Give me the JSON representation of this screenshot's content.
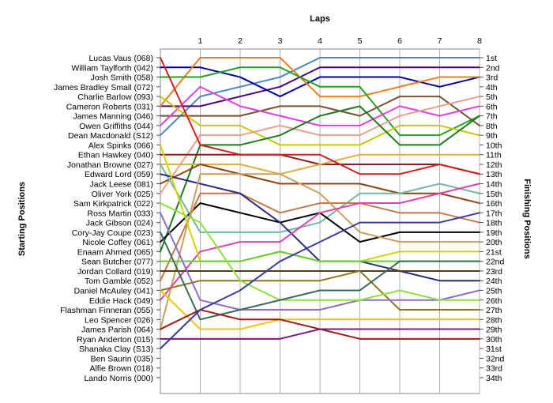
{
  "chart_data": {
    "type": "line",
    "title": "",
    "xlabel": "Laps",
    "ylabel_left": "Starting Positions",
    "ylabel_right": "Finishing Positions",
    "laps": [
      1,
      2,
      3,
      4,
      5,
      6,
      7,
      8
    ],
    "start_labels": [
      "Lucas Vaus (068)",
      "William Taylforth (042)",
      "Josh Smith (058)",
      "James Bradley Small (072)",
      "Charlie Barlow (093)",
      "Cameron Roberts (031)",
      "James Manning (046)",
      "Owen Griffiths (044)",
      "Dean Macdonald (S12)",
      "Alex Spinks (066)",
      "Ethan Hawkey (040)",
      "Jonathan Browne (027)",
      "Edward Lord (059)",
      "Jack Leese (081)",
      "Oliver York (025)",
      "Sam Kirkpatrick (022)",
      "Ross Martin (033)",
      "Jack Gibson (024)",
      "Cory-Jay Coupe (023)",
      "Nicole Coffey (061)",
      "Enaam Ahmed (065)",
      "Sean Butcher (077)",
      "Jordan Collard (019)",
      "Tom Gamble (052)",
      "Daniel McAuley (041)",
      "Eddie Hack (049)",
      "Flashman Finneran (055)",
      "Leo Spencer (026)",
      "James Parish (064)",
      "Ryan Anderton (015)",
      "Shanaka Clay (S13)",
      "Ben Saurin (035)",
      "Alfie Brown (018)",
      "Lando Norris (000)"
    ],
    "finish_labels": [
      "1st",
      "2nd",
      "3rd",
      "4th",
      "5th",
      "6th",
      "7th",
      "8th",
      "9th",
      "10th",
      "11th",
      "12th",
      "13th",
      "14th",
      "15th",
      "16th",
      "17th",
      "18th",
      "19th",
      "20th",
      "21st",
      "22nd",
      "23rd",
      "24th",
      "25th",
      "26th",
      "27th",
      "28th",
      "29th",
      "30th",
      "31st",
      "32nd",
      "33rd",
      "34th"
    ],
    "series": [
      {
        "color": "#4a86c8",
        "positions": [
          9,
          5,
          4,
          3,
          1,
          1,
          1,
          1,
          1
        ]
      },
      {
        "color": "#4b0082",
        "positions": [
          6,
          6,
          5,
          4,
          2,
          2,
          2,
          2,
          2
        ]
      },
      {
        "color": "#000099",
        "positions": [
          2,
          2,
          3,
          5,
          3,
          3,
          3,
          4,
          3
        ]
      },
      {
        "color": "#ee7f1a",
        "positions": [
          6,
          1,
          1,
          1,
          5,
          5,
          4,
          3,
          3
        ]
      },
      {
        "color": "#26a026",
        "positions": [
          3,
          3,
          2,
          2,
          4,
          4,
          9,
          9,
          7
        ]
      },
      {
        "color": "#7a5230",
        "positions": [
          7,
          7,
          7,
          6,
          6,
          7,
          5,
          5,
          8
        ]
      },
      {
        "color": "#e040e0",
        "positions": [
          8,
          4,
          6,
          7,
          8,
          8,
          6,
          7,
          6
        ]
      },
      {
        "color": "#c8c800",
        "positions": [
          5,
          8,
          8,
          10,
          10,
          10,
          8,
          8,
          9
        ]
      },
      {
        "color": "#e8a090",
        "positions": [
          15,
          9,
          9,
          8,
          9,
          9,
          7,
          6,
          5
        ]
      },
      {
        "color": "#1f7a1f",
        "positions": [
          21,
          10,
          10,
          9,
          7,
          6,
          10,
          10,
          7
        ]
      },
      {
        "color": "#8b1a1a",
        "positions": [
          11,
          11,
          11,
          11,
          12,
          12,
          12,
          12,
          13
        ]
      },
      {
        "color": "#e0b040",
        "positions": [
          12,
          12,
          12,
          13,
          12,
          11,
          11,
          11,
          11
        ]
      },
      {
        "color": "#cc2222",
        "positions": [
          1,
          10,
          11,
          11,
          11,
          13,
          13,
          12,
          13
        ]
      },
      {
        "color": "#8b4513",
        "positions": [
          14,
          12,
          13,
          14,
          14,
          14,
          15,
          15,
          16
        ]
      },
      {
        "color": "#70b8a8",
        "positions": [
          12,
          19,
          19,
          19,
          18,
          15,
          15,
          14,
          15
        ]
      },
      {
        "color": "#000000",
        "positions": [
          20,
          16,
          17,
          18,
          17,
          20,
          19,
          19,
          19
        ]
      },
      {
        "color": "#c87848",
        "positions": [
          24,
          15,
          15,
          17,
          16,
          16,
          17,
          17,
          18
        ]
      },
      {
        "color": "#2c2c7a",
        "positions": [
          13,
          14,
          15,
          18,
          22,
          22,
          23,
          24,
          24
        ]
      },
      {
        "color": "#c8a060",
        "positions": [
          29,
          13,
          13,
          13,
          15,
          19,
          20,
          20,
          20
        ]
      },
      {
        "color": "#e040b0",
        "positions": [
          26,
          21,
          20,
          20,
          17,
          16,
          16,
          15,
          14
        ]
      },
      {
        "color": "#d4d400",
        "positions": [
          10,
          22,
          22,
          21,
          22,
          22,
          21,
          21,
          21
        ]
      },
      {
        "color": "#66cc33",
        "positions": [
          22,
          22,
          22,
          21,
          22,
          22,
          22,
          22,
          22
        ]
      },
      {
        "color": "#5a3a10",
        "positions": [
          23,
          23,
          23,
          23,
          23,
          23,
          23,
          23,
          23
        ]
      },
      {
        "color": "#8a7a20",
        "positions": [
          25,
          24,
          24,
          24,
          24,
          23,
          27,
          27,
          27
        ]
      },
      {
        "color": "#8e6ec8",
        "positions": [
          17,
          26,
          27,
          27,
          27,
          26,
          26,
          26,
          25
        ]
      },
      {
        "color": "#90e040",
        "positions": [
          16,
          18,
          24,
          26,
          26,
          26,
          25,
          26,
          26
        ]
      },
      {
        "color": "#3a6a5a",
        "positions": [
          19,
          28,
          27,
          26,
          25,
          25,
          22,
          22,
          22
        ]
      },
      {
        "color": "#e8c800",
        "positions": [
          25,
          29,
          29,
          28,
          28,
          28,
          28,
          28,
          28
        ]
      },
      {
        "color": "#a01818",
        "positions": [
          29,
          27,
          28,
          28,
          29,
          30,
          30,
          30,
          30
        ]
      },
      {
        "color": "#7a1a7a",
        "positions": [
          30,
          30,
          30,
          30,
          29,
          29,
          29,
          29,
          29
        ]
      },
      {
        "color": "#3a3aa0",
        "positions": [
          31,
          27,
          25,
          22,
          20,
          18,
          18,
          18,
          17
        ]
      }
    ],
    "grid": true,
    "legend": "none"
  }
}
